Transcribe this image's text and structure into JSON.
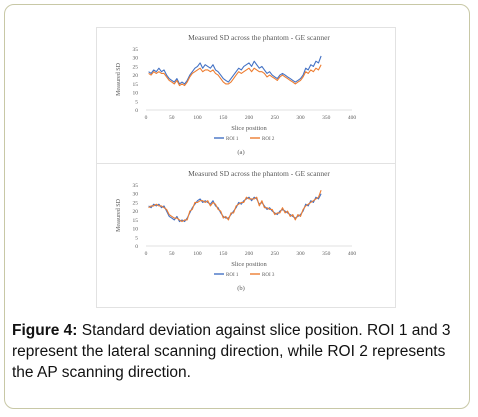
{
  "caption": {
    "label": "Figure 4:",
    "text": "Standard deviation against slice position. ROI 1 and 3 represent the lateral scanning direction, while ROI 2 represents the AP scanning direction."
  },
  "chart_data": [
    {
      "type": "line",
      "panel_label": "(a)",
      "title": "Measured SD across the phantom - GE scanner",
      "xlabel": "Slice position",
      "ylabel": "Measured SD",
      "xlim": [
        0,
        400
      ],
      "ylim": [
        0,
        35
      ],
      "xticks": [
        0,
        50,
        100,
        150,
        200,
        250,
        300,
        350,
        400
      ],
      "yticks": [
        0,
        5,
        10,
        15,
        20,
        25,
        30,
        35
      ],
      "grid": false,
      "legend": "bottom",
      "series": [
        {
          "name": "ROI 1",
          "color": "#4472c4",
          "x": [
            5,
            10,
            15,
            20,
            25,
            30,
            35,
            40,
            45,
            50,
            55,
            60,
            65,
            70,
            75,
            80,
            85,
            90,
            95,
            100,
            105,
            110,
            115,
            120,
            125,
            130,
            135,
            140,
            145,
            150,
            155,
            160,
            165,
            170,
            175,
            180,
            185,
            190,
            195,
            200,
            205,
            210,
            215,
            220,
            225,
            230,
            235,
            240,
            245,
            250,
            255,
            260,
            265,
            270,
            275,
            280,
            285,
            290,
            295,
            300,
            305,
            310,
            315,
            320,
            325,
            330,
            335,
            340
          ],
          "y": [
            22,
            21,
            23,
            22,
            24,
            22,
            23,
            20,
            18,
            17,
            16,
            18,
            15,
            16,
            15,
            17,
            20,
            22,
            24,
            25,
            27,
            24,
            26,
            25,
            24,
            26,
            23,
            22,
            20,
            18,
            17,
            16,
            18,
            20,
            22,
            24,
            23,
            25,
            26,
            27,
            25,
            28,
            26,
            24,
            25,
            23,
            21,
            22,
            20,
            19,
            18,
            20,
            21,
            20,
            19,
            18,
            17,
            16,
            17,
            18,
            20,
            24,
            23,
            26,
            25,
            28,
            27,
            31
          ]
        },
        {
          "name": "ROI 2",
          "color": "#ed7d31",
          "x": [
            5,
            10,
            15,
            20,
            25,
            30,
            35,
            40,
            45,
            50,
            55,
            60,
            65,
            70,
            75,
            80,
            85,
            90,
            95,
            100,
            105,
            110,
            115,
            120,
            125,
            130,
            135,
            140,
            145,
            150,
            155,
            160,
            165,
            170,
            175,
            180,
            185,
            190,
            195,
            200,
            205,
            210,
            215,
            220,
            225,
            230,
            235,
            240,
            245,
            250,
            255,
            260,
            265,
            270,
            275,
            280,
            285,
            290,
            295,
            300,
            305,
            310,
            315,
            320,
            325,
            330,
            335,
            340
          ],
          "y": [
            21,
            20,
            22,
            21,
            22,
            21,
            21,
            19,
            17,
            16,
            15,
            17,
            14,
            15,
            14,
            16,
            19,
            21,
            22,
            23,
            24,
            22,
            23,
            23,
            22,
            23,
            21,
            20,
            18,
            16,
            15,
            15,
            16,
            18,
            20,
            22,
            21,
            22,
            23,
            24,
            22,
            24,
            23,
            22,
            22,
            21,
            19,
            20,
            19,
            18,
            17,
            19,
            20,
            19,
            18,
            17,
            16,
            15,
            16,
            17,
            19,
            22,
            21,
            23,
            22,
            24,
            23,
            26
          ]
        }
      ]
    },
    {
      "type": "line",
      "panel_label": "(b)",
      "title": "Measured SD across the phantom - GE scanner",
      "xlabel": "Slice position",
      "ylabel": "Measured SD",
      "xlim": [
        0,
        400
      ],
      "ylim": [
        0,
        35
      ],
      "xticks": [
        0,
        50,
        100,
        150,
        200,
        250,
        300,
        350,
        400
      ],
      "yticks": [
        0,
        5,
        10,
        15,
        20,
        25,
        30,
        35
      ],
      "grid": false,
      "legend": "bottom",
      "series": [
        {
          "name": "ROI 1",
          "color": "#4472c4",
          "x": [
            5,
            10,
            15,
            20,
            25,
            30,
            35,
            40,
            45,
            50,
            55,
            60,
            65,
            70,
            75,
            80,
            85,
            90,
            95,
            100,
            105,
            110,
            115,
            120,
            125,
            130,
            135,
            140,
            145,
            150,
            155,
            160,
            165,
            170,
            175,
            180,
            185,
            190,
            195,
            200,
            205,
            210,
            215,
            220,
            225,
            230,
            235,
            240,
            245,
            250,
            255,
            260,
            265,
            270,
            275,
            280,
            285,
            290,
            295,
            300,
            305,
            310,
            315,
            320,
            325,
            330,
            335,
            340
          ],
          "y": [
            23,
            22,
            24,
            23,
            24,
            22,
            23,
            20,
            17,
            16,
            15,
            17,
            14,
            15,
            14,
            16,
            19,
            22,
            24,
            26,
            27,
            25,
            26,
            25,
            24,
            26,
            23,
            22,
            19,
            17,
            16,
            16,
            18,
            20,
            22,
            25,
            24,
            26,
            27,
            28,
            26,
            28,
            27,
            24,
            25,
            23,
            21,
            22,
            20,
            19,
            18,
            20,
            21,
            20,
            19,
            18,
            17,
            16,
            17,
            18,
            20,
            24,
            23,
            26,
            25,
            28,
            27,
            30
          ]
        },
        {
          "name": "ROI 3",
          "color": "#ed7d31",
          "x": [
            5,
            10,
            15,
            20,
            25,
            30,
            35,
            40,
            45,
            50,
            55,
            60,
            65,
            70,
            75,
            80,
            85,
            90,
            95,
            100,
            105,
            110,
            115,
            120,
            125,
            130,
            135,
            140,
            145,
            150,
            155,
            160,
            165,
            170,
            175,
            180,
            185,
            190,
            195,
            200,
            205,
            210,
            215,
            220,
            225,
            230,
            235,
            240,
            245,
            250,
            255,
            260,
            265,
            270,
            275,
            280,
            285,
            290,
            295,
            300,
            305,
            310,
            315,
            320,
            325,
            330,
            335,
            340
          ],
          "y": [
            22,
            23,
            23,
            24,
            23,
            23,
            22,
            21,
            18,
            17,
            16,
            16,
            15,
            14,
            15,
            15,
            20,
            21,
            25,
            25,
            26,
            26,
            25,
            26,
            23,
            25,
            24,
            21,
            20,
            16,
            17,
            15,
            19,
            19,
            23,
            24,
            25,
            25,
            28,
            27,
            27,
            27,
            28,
            23,
            26,
            22,
            22,
            21,
            21,
            18,
            19,
            19,
            22,
            19,
            20,
            17,
            18,
            15,
            18,
            17,
            21,
            23,
            24,
            25,
            26,
            27,
            28,
            32
          ]
        }
      ]
    }
  ]
}
